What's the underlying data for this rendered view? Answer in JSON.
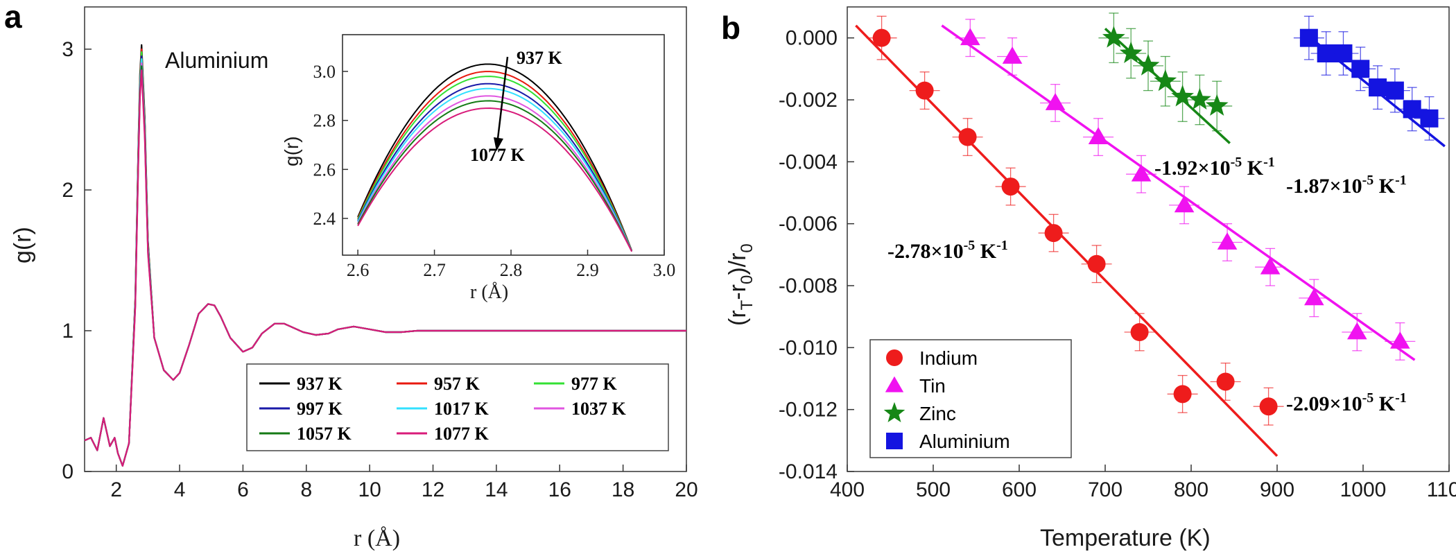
{
  "panels": {
    "a": "a",
    "b": "b"
  },
  "chart_data": [
    {
      "id": "a-main",
      "type": "line",
      "title": "Aluminium",
      "xlabel": "r (Å)",
      "ylabel": "g(r)",
      "xlim": [
        1,
        20
      ],
      "ylim": [
        0,
        3.3
      ],
      "xticks": [
        "2",
        "4",
        "6",
        "8",
        "10",
        "12",
        "14",
        "16",
        "18",
        "20"
      ],
      "yticks": [
        "0",
        "1",
        "2",
        "3"
      ],
      "legend_position": "lower-right",
      "x": [
        1.0,
        1.2,
        1.4,
        1.6,
        1.8,
        1.95,
        2.05,
        2.2,
        2.4,
        2.6,
        2.7,
        2.75,
        2.8,
        2.9,
        3.0,
        3.2,
        3.5,
        3.8,
        4.0,
        4.3,
        4.6,
        4.9,
        5.1,
        5.3,
        5.6,
        6.0,
        6.3,
        6.6,
        7.0,
        7.3,
        7.6,
        7.9,
        8.3,
        8.7,
        9.0,
        9.5,
        10.0,
        10.5,
        11.0,
        11.5,
        12.0,
        13.0,
        14.0,
        15.0,
        16.0,
        17.0,
        18.0,
        19.0,
        20.0
      ],
      "series": [
        {
          "name": "937 K",
          "color": "#000000",
          "peak": 3.03
        },
        {
          "name": "957 K",
          "color": "#e8190f",
          "peak": 3.0
        },
        {
          "name": "977 K",
          "color": "#33e033",
          "peak": 2.98
        },
        {
          "name": "997 K",
          "color": "#1a1aa8",
          "peak": 2.95
        },
        {
          "name": "1017 K",
          "color": "#33e0ff",
          "peak": 2.93
        },
        {
          "name": "1037 K",
          "color": "#e055e0",
          "peak": 2.9
        },
        {
          "name": "1057 K",
          "color": "#157a15",
          "peak": 2.88
        },
        {
          "name": "1077 K",
          "color": "#d81b7a",
          "peak": 2.85
        }
      ],
      "base_curve": [
        0.22,
        0.24,
        0.15,
        0.38,
        0.18,
        0.24,
        0.13,
        0.04,
        0.2,
        1.2,
        2.3,
        2.75,
        2.95,
        2.45,
        1.6,
        0.95,
        0.72,
        0.65,
        0.7,
        0.9,
        1.12,
        1.19,
        1.18,
        1.1,
        0.95,
        0.85,
        0.88,
        0.98,
        1.05,
        1.05,
        1.02,
        0.99,
        0.97,
        0.98,
        1.01,
        1.03,
        1.01,
        0.99,
        0.99,
        1.0,
        1.0,
        1.0,
        1.0,
        1.0,
        1.0,
        1.0,
        1.0,
        1.0,
        1.0
      ]
    },
    {
      "id": "a-inset",
      "type": "line",
      "xlabel": "r (Å)",
      "ylabel": "g(r)",
      "xlim": [
        2.58,
        3.0
      ],
      "ylim": [
        2.25,
        3.15
      ],
      "xticks": [
        "2.6",
        "2.7",
        "2.8",
        "2.9",
        "3.0"
      ],
      "yticks": [
        "2.4",
        "2.6",
        "2.8",
        "3.0"
      ],
      "peak_x": 2.77,
      "annotation_top": "937 K",
      "annotation_bottom": "1077 K"
    },
    {
      "id": "b",
      "type": "scatter",
      "xlabel": "Temperature (K)",
      "ylabel": "(r_T - r_0)/r_0",
      "xlim": [
        400,
        1100
      ],
      "ylim": [
        -0.014,
        0.001
      ],
      "xticks": [
        "400",
        "500",
        "600",
        "700",
        "800",
        "900",
        "1000",
        "1100"
      ],
      "yticks": [
        "0.000",
        "-0.002",
        "-0.004",
        "-0.006",
        "-0.008",
        "-0.010",
        "-0.012",
        "-0.014"
      ],
      "legend_position": "lower-left",
      "series": [
        {
          "name": "Indium",
          "marker": "circle",
          "color": "#ee1c1c",
          "x": [
            440,
            490,
            540,
            590,
            640,
            690,
            740,
            790,
            840,
            890
          ],
          "y": [
            0.0,
            -0.0017,
            -0.0032,
            -0.0048,
            -0.0063,
            -0.0073,
            -0.0095,
            -0.0115,
            -0.0111,
            -0.0119
          ],
          "err": [
            0.0007,
            0.0006,
            0.0006,
            0.0006,
            0.0006,
            0.0006,
            0.0006,
            0.0006,
            0.0006,
            0.0006
          ],
          "fit": [
            [
              410,
              0.0004
            ],
            [
              900,
              -0.0135
            ]
          ],
          "slope_label": "-2.78×10",
          "slope_exp": "-5",
          "slope_unit": "K",
          "unit_exp": "-1"
        },
        {
          "name": "Tin",
          "marker": "triangle",
          "color": "#f012f0",
          "x": [
            543,
            592,
            642,
            692,
            742,
            792,
            842,
            892,
            943,
            993,
            1043
          ],
          "y": [
            0.0,
            -0.0006,
            -0.0021,
            -0.0032,
            -0.0044,
            -0.0054,
            -0.0066,
            -0.0074,
            -0.0084,
            -0.0095,
            -0.0098
          ],
          "err": [
            0.0006,
            0.0006,
            0.0006,
            0.0006,
            0.0006,
            0.0006,
            0.0006,
            0.0006,
            0.0006,
            0.0006,
            0.0006
          ],
          "fit": [
            [
              510,
              0.0004
            ],
            [
              1060,
              -0.0104
            ]
          ],
          "slope_label": "-2.09×10",
          "slope_exp": "-5",
          "slope_unit": "K",
          "unit_exp": "-1"
        },
        {
          "name": "Zinc",
          "marker": "star",
          "color": "#168716",
          "x": [
            710,
            730,
            750,
            770,
            790,
            810,
            830
          ],
          "y": [
            0.0,
            -0.0005,
            -0.0009,
            -0.0014,
            -0.0019,
            -0.002,
            -0.0022
          ],
          "err": [
            0.0008,
            0.0008,
            0.0008,
            0.0008,
            0.0008,
            0.0008,
            0.0008
          ],
          "fit": [
            [
              700,
              0.0003
            ],
            [
              845,
              -0.0034
            ]
          ],
          "slope_label": "-1.92×10",
          "slope_exp": "-5",
          "slope_unit": "K",
          "unit_exp": "-1"
        },
        {
          "name": "Aluminium",
          "marker": "square",
          "color": "#1414e0",
          "x": [
            937,
            957,
            977,
            997,
            1017,
            1037,
            1057,
            1077
          ],
          "y": [
            0.0,
            -0.0005,
            -0.0005,
            -0.001,
            -0.0016,
            -0.0017,
            -0.0023,
            -0.0026
          ],
          "err": [
            0.0007,
            0.0007,
            0.0007,
            0.0007,
            0.0007,
            0.0007,
            0.0007,
            0.0007
          ],
          "fit": [
            [
              930,
              0.0002
            ],
            [
              1095,
              -0.0035
            ]
          ],
          "slope_label": "-1.87×10",
          "slope_exp": "-5",
          "slope_unit": "K",
          "unit_exp": "-1"
        }
      ]
    }
  ]
}
